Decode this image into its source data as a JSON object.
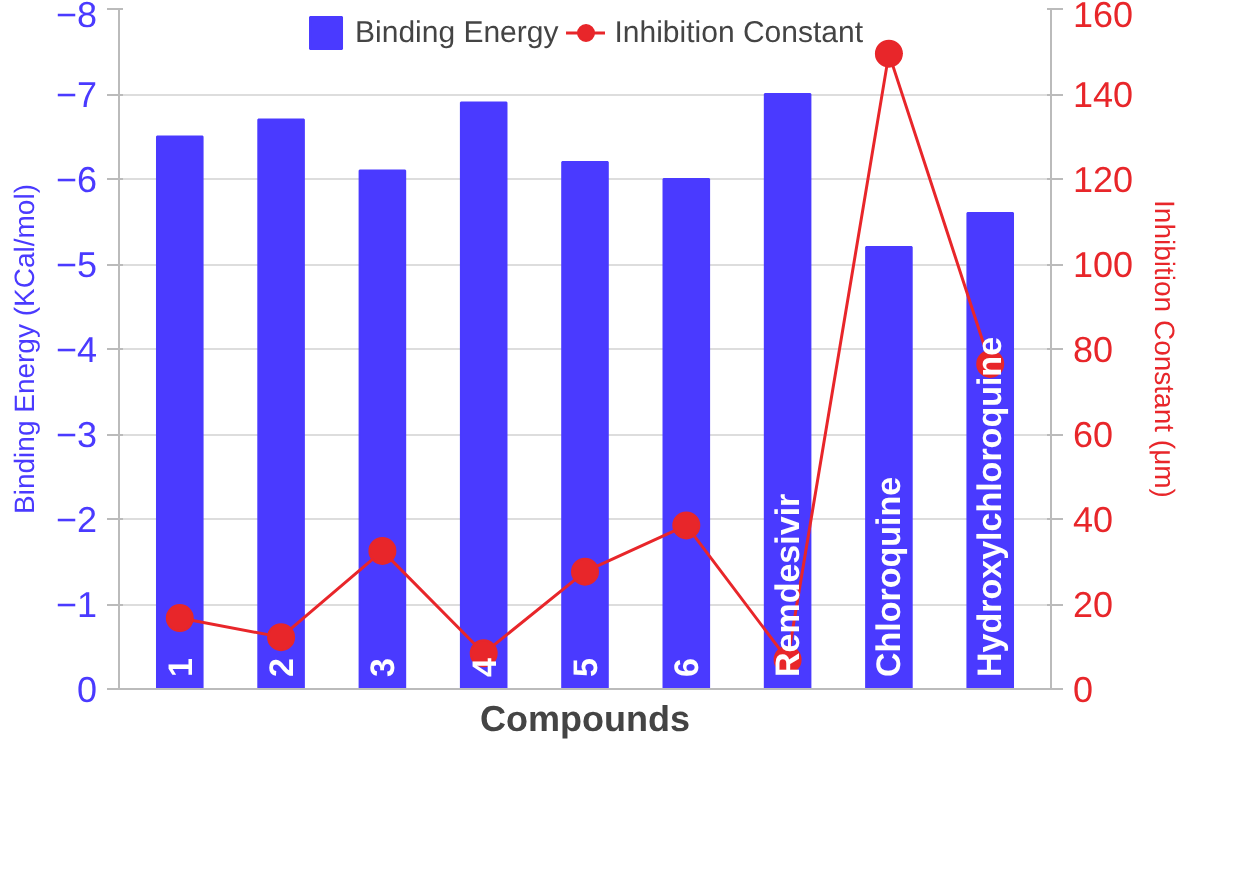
{
  "chart_data": {
    "type": "bar",
    "xlabel": "Compounds",
    "ylabel": "Binding Energy (KCal/mol)",
    "y2label": "Inhibition Constant (μm)",
    "categories": [
      "1",
      "2",
      "3",
      "4",
      "5",
      "6",
      "Remdesivir",
      "Chloroquine",
      "Hydroxylchloroquine"
    ],
    "series": [
      {
        "name": "Binding Energy",
        "color": "#4a3aff",
        "values": [
          -6.5,
          -6.7,
          -6.1,
          -6.9,
          -6.2,
          -6.0,
          -7.0,
          -5.2,
          -5.6
        ]
      },
      {
        "name": "Inhibition Constant",
        "type": "line",
        "axis": "y2",
        "color": "#e8262a",
        "marker": "circle",
        "values": [
          16.7,
          12.2,
          32.5,
          8.4,
          27.6,
          38.5,
          6.9,
          149.5,
          76.5
        ]
      }
    ],
    "ylim": [
      0,
      -8
    ],
    "yticks": [
      0,
      -1,
      -2,
      -3,
      -4,
      -5,
      -6,
      -7,
      -8
    ],
    "y2lim": [
      0,
      160
    ],
    "y2ticks": [
      0,
      20,
      40,
      60,
      80,
      100,
      120,
      140,
      160
    ],
    "grid": "y",
    "legend": "top"
  }
}
